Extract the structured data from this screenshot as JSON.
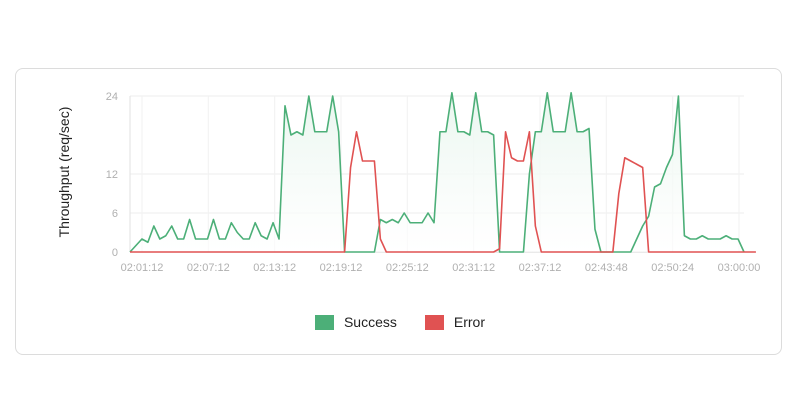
{
  "chart_data": {
    "type": "line",
    "title": "",
    "xlabel": "",
    "ylabel": "Throughput (req/sec)",
    "ylim": [
      0,
      24
    ],
    "y_ticks": [
      0,
      6,
      12,
      24
    ],
    "x_tick_labels": [
      "02:01:12",
      "02:07:12",
      "02:13:12",
      "02:19:12",
      "02:25:12",
      "02:31:12",
      "02:37:12",
      "02:43:48",
      "02:50:24",
      "03:00:00"
    ],
    "grid": true,
    "legend_position": "bottom-center",
    "series": [
      {
        "name": "Success",
        "color": "#4caf78",
        "fill": "#eaf6ef",
        "values": [
          0,
          1,
          2,
          1.5,
          4,
          2,
          2.5,
          4,
          2,
          2,
          5,
          2,
          2,
          2,
          5,
          2,
          2,
          4.5,
          3,
          2,
          2,
          4.5,
          2.5,
          2,
          4.5,
          2,
          22.5,
          18,
          18.5,
          18,
          24,
          18.5,
          18.5,
          18.5,
          24,
          18.5,
          0,
          0,
          0,
          0,
          0,
          0,
          5,
          4.5,
          5,
          4.5,
          6,
          4.5,
          4.5,
          4.5,
          6,
          4.5,
          18.5,
          18.5,
          24.5,
          18.5,
          18.5,
          18,
          24.5,
          18.5,
          18.5,
          18,
          0,
          0,
          0,
          0,
          0,
          12,
          18.5,
          18.5,
          24.5,
          18.5,
          18.5,
          18.5,
          24.5,
          18.5,
          18.5,
          19,
          3.5,
          0,
          0,
          0,
          0,
          0,
          0,
          2,
          4,
          5.5,
          10,
          10.5,
          13,
          15,
          24,
          2.5,
          2,
          2,
          2.5,
          2,
          2,
          2,
          2.5,
          2,
          2,
          0
        ]
      },
      {
        "name": "Error",
        "color": "#e05252",
        "values": [
          0,
          0,
          0,
          0,
          0,
          0,
          0,
          0,
          0,
          0,
          0,
          0,
          0,
          0,
          0,
          0,
          0,
          0,
          0,
          0,
          0,
          0,
          0,
          0,
          0,
          0,
          0,
          0,
          0,
          0,
          0,
          0,
          0,
          0,
          0,
          0,
          0,
          13,
          18.5,
          14,
          14,
          14,
          2,
          0,
          0,
          0,
          0,
          0,
          0,
          0,
          0,
          0,
          0,
          0,
          0,
          0,
          0,
          0,
          0,
          0,
          0,
          0,
          0.5,
          18.5,
          14.5,
          14,
          14,
          18.5,
          4,
          0,
          0,
          0,
          0,
          0,
          0,
          0,
          0,
          0,
          0,
          0,
          0,
          0,
          9,
          14.5,
          14,
          13.5,
          13,
          0,
          0,
          0,
          0,
          0,
          0,
          0,
          0,
          0,
          0,
          0,
          0,
          0,
          0,
          0,
          0,
          0,
          0,
          0
        ]
      }
    ]
  }
}
